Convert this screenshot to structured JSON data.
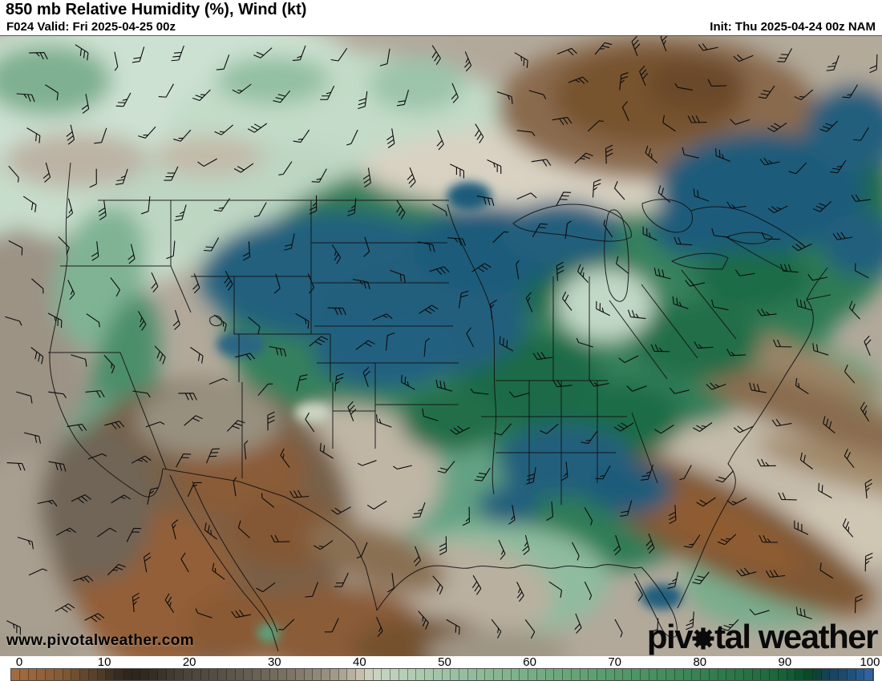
{
  "header": {
    "title": "850 mb Relative Humidity (%), Wind (kt)",
    "valid_label": "F024 Valid: Fri 2025-04-25 00z",
    "init_label": "Init: Thu 2025-04-24 00z NAM"
  },
  "map": {
    "watermark": "www.pivotalweather.com",
    "logo_part1": "piv",
    "logo_part2": "tal weather",
    "logo_gear_icon": "gear-icon",
    "overlays": [
      "relative-humidity-shading",
      "wind-barbs",
      "state-boundaries"
    ]
  },
  "colorbar": {
    "min": 0,
    "max": 100,
    "ticks": [
      "0",
      "10",
      "20",
      "30",
      "40",
      "50",
      "60",
      "70",
      "80",
      "90",
      "100"
    ],
    "stops": [
      {
        "v": 0,
        "c": "#a46c3e"
      },
      {
        "v": 3,
        "c": "#97643b"
      },
      {
        "v": 6,
        "c": "#835a35"
      },
      {
        "v": 8,
        "c": "#6b4a2d"
      },
      {
        "v": 10,
        "c": "#533f28"
      },
      {
        "v": 12,
        "c": "#3a2e20"
      },
      {
        "v": 14,
        "c": "#2d241b"
      },
      {
        "v": 16,
        "c": "#332b21"
      },
      {
        "v": 18,
        "c": "#3f372b"
      },
      {
        "v": 20,
        "c": "#4a4237"
      },
      {
        "v": 24,
        "c": "#584f43"
      },
      {
        "v": 28,
        "c": "#675f52"
      },
      {
        "v": 32,
        "c": "#7b7263"
      },
      {
        "v": 36,
        "c": "#948a7a"
      },
      {
        "v": 38,
        "c": "#a89e8d"
      },
      {
        "v": 40,
        "c": "#c0b6a5"
      },
      {
        "v": 41,
        "c": "#cfc6b5"
      },
      {
        "v": 42,
        "c": "#cbd4c1"
      },
      {
        "v": 44,
        "c": "#bdd2bc"
      },
      {
        "v": 48,
        "c": "#a9c9ac"
      },
      {
        "v": 52,
        "c": "#97bf9f"
      },
      {
        "v": 56,
        "c": "#88b793"
      },
      {
        "v": 60,
        "c": "#79ae87"
      },
      {
        "v": 64,
        "c": "#6ba67b"
      },
      {
        "v": 68,
        "c": "#5e9e71"
      },
      {
        "v": 72,
        "c": "#519566"
      },
      {
        "v": 76,
        "c": "#448c5c"
      },
      {
        "v": 80,
        "c": "#368152"
      },
      {
        "v": 84,
        "c": "#2b7548"
      },
      {
        "v": 88,
        "c": "#1f693e"
      },
      {
        "v": 90,
        "c": "#165f35"
      },
      {
        "v": 92,
        "c": "#0b4e2a"
      },
      {
        "v": 93,
        "c": "#094523"
      },
      {
        "v": 94,
        "c": "#11414b"
      },
      {
        "v": 95,
        "c": "#16425b"
      },
      {
        "v": 96,
        "c": "#1a4767"
      },
      {
        "v": 97,
        "c": "#1e4d74"
      },
      {
        "v": 98,
        "c": "#225482"
      },
      {
        "v": 99,
        "c": "#2a5d95"
      },
      {
        "v": 100,
        "c": "#3467a9"
      }
    ]
  },
  "chart_data": {
    "type": "heatmap",
    "title": "850 mb Relative Humidity (%), Wind (kt)",
    "colorbar_ticks": [
      0,
      10,
      20,
      30,
      40,
      50,
      60,
      70,
      80,
      90,
      100
    ],
    "units": "%",
    "legend_position": "bottom"
  }
}
